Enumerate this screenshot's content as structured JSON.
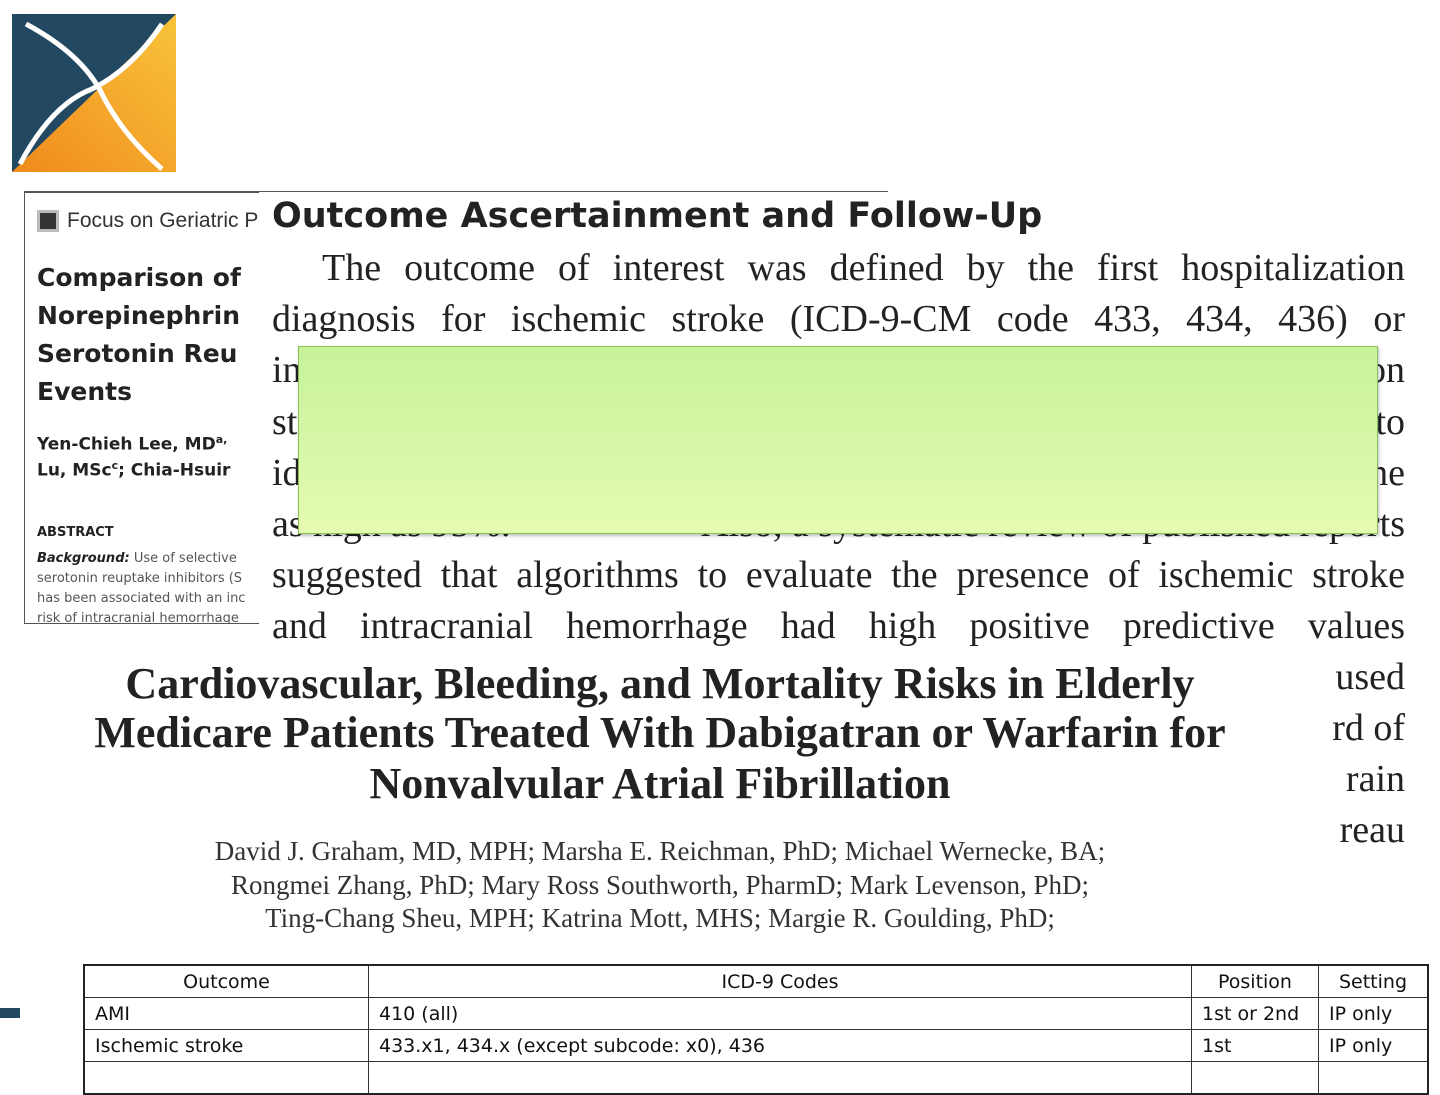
{
  "geriatric_clip": {
    "journal": "Focus on Geriatric P",
    "title_lines": [
      "Comparison of",
      "Norepinephrin",
      "Serotonin Reu",
      "Events"
    ],
    "author_lines": [
      {
        "text": "Yen-Chieh Lee, MD",
        "sup": "a,"
      },
      {
        "text": "Lu, MSc",
        "sup": "c",
        "rest": "; Chia-Hsuir"
      }
    ],
    "abstract_label": "ABSTRACT",
    "background_label": "Background:",
    "abstract_lines": [
      "Use of selective",
      "serotonin reuptake inhibitors (S",
      "has been associated with an inc",
      "risk of intracranial hemorrhage"
    ]
  },
  "outcome_clip": {
    "heading": "Outcome Ascertainment and Follow-Up",
    "lines": [
      [
        "The outcome of interest was defined by the first hospitalization"
      ],
      [
        "diagnosis for ischemic stroke (ICD-9-CM code 433, 434, 436) or"
      ],
      [
        "in",
        "on"
      ],
      [
        "st",
        "to"
      ],
      [
        "id",
        "ne"
      ],
      [
        "as high as 95%.",
        "Also, a systematic review of published reports"
      ],
      [
        "suggested that algorithms to evaluate the presence of ischemic stroke"
      ],
      [
        "and intracranial hemorrhage had high positive predictive values"
      ]
    ],
    "right_fragments": [
      "used",
      "rd of",
      "rain",
      "reau"
    ]
  },
  "dabigatran_clip": {
    "title_lines": [
      "Cardiovascular, Bleeding, and Mortality Risks in Elderly",
      "Medicare Patients Treated With Dabigatran or Warfarin for",
      "Nonvalvular Atrial Fibrillation"
    ],
    "author_lines": [
      "David J. Graham, MD, MPH; Marsha E. Reichman, PhD; Michael Wernecke, BA;",
      "Rongmei Zhang, PhD; Mary Ross Southworth, PharmD; Mark Levenson, PhD;",
      "Ting-Chang Sheu, MPH; Katrina Mott, MHS; Margie R. Goulding, PhD;"
    ]
  },
  "table": {
    "headers": [
      "Outcome",
      "ICD-9 Codes",
      "Position",
      "Setting"
    ],
    "rows": [
      [
        "AMI",
        "410 (all)",
        "1st or 2nd",
        "IP only"
      ],
      [
        "Ischemic stroke",
        "433.x1, 434.x (except subcode: x0), 436",
        "1st",
        "IP only"
      ]
    ]
  }
}
